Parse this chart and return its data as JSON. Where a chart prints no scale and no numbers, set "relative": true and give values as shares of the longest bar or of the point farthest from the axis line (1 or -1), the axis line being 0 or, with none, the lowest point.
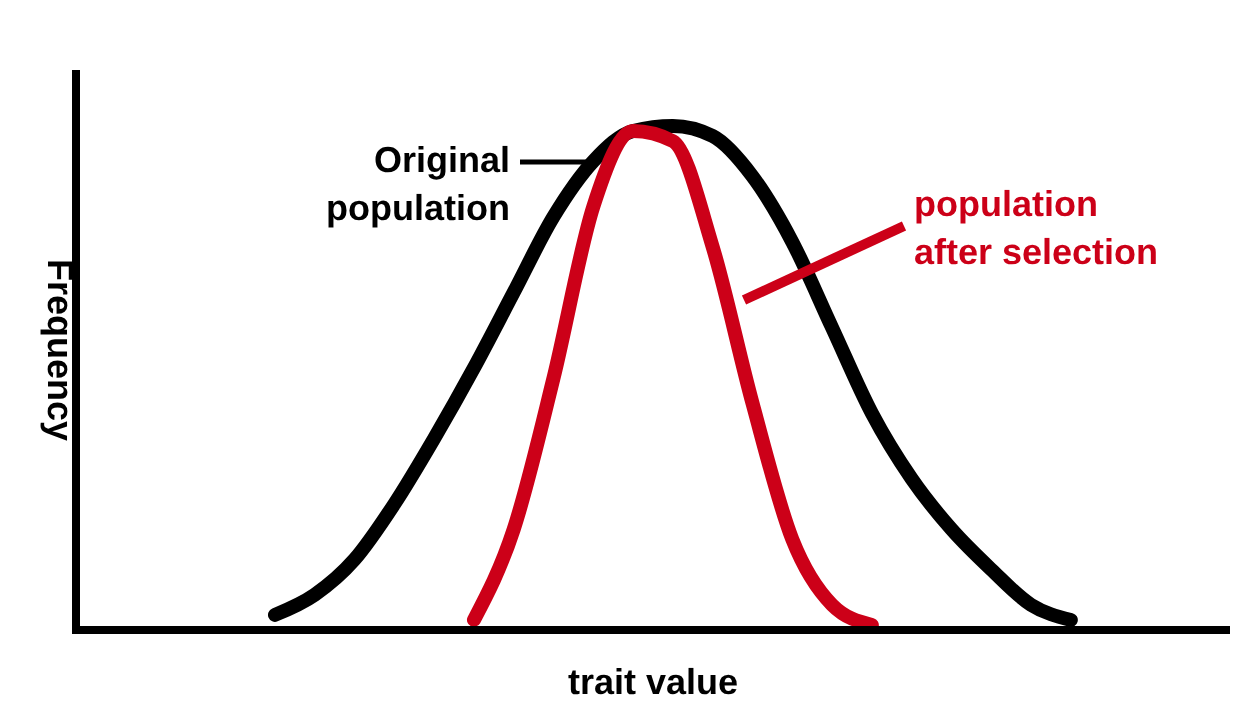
{
  "chart_data": {
    "type": "line",
    "relative": true,
    "xlabel": "trait value",
    "ylabel": "Frequency",
    "line_style": "solid",
    "categories": [
      null,
      null,
      null,
      null,
      null,
      null,
      null,
      null,
      null,
      null,
      null,
      null,
      null,
      null,
      null,
      null,
      null,
      null,
      null,
      null,
      null,
      null,
      null,
      null,
      null,
      null,
      null,
      null,
      null,
      null
    ],
    "series": [
      {
        "name": "Original population",
        "color": "#000000",
        "values": [
          null,
          null,
          null,
          null,
          null,
          0.03,
          0.07,
          0.14,
          0.25,
          0.38,
          0.52,
          0.67,
          0.82,
          0.93,
          0.99,
          1.0,
          0.98,
          0.9,
          0.77,
          0.6,
          0.43,
          0.3,
          0.2,
          0.12,
          0.05,
          0.02,
          null,
          null,
          null,
          null
        ]
      },
      {
        "name": "population after selection",
        "color": "#cc0018",
        "values": [
          null,
          null,
          null,
          null,
          null,
          null,
          null,
          null,
          null,
          null,
          0.02,
          0.2,
          0.5,
          0.84,
          0.99,
          0.97,
          0.76,
          0.45,
          0.18,
          0.05,
          0.01,
          null,
          null,
          null,
          null,
          null,
          null,
          null,
          null,
          null
        ]
      }
    ]
  }
}
